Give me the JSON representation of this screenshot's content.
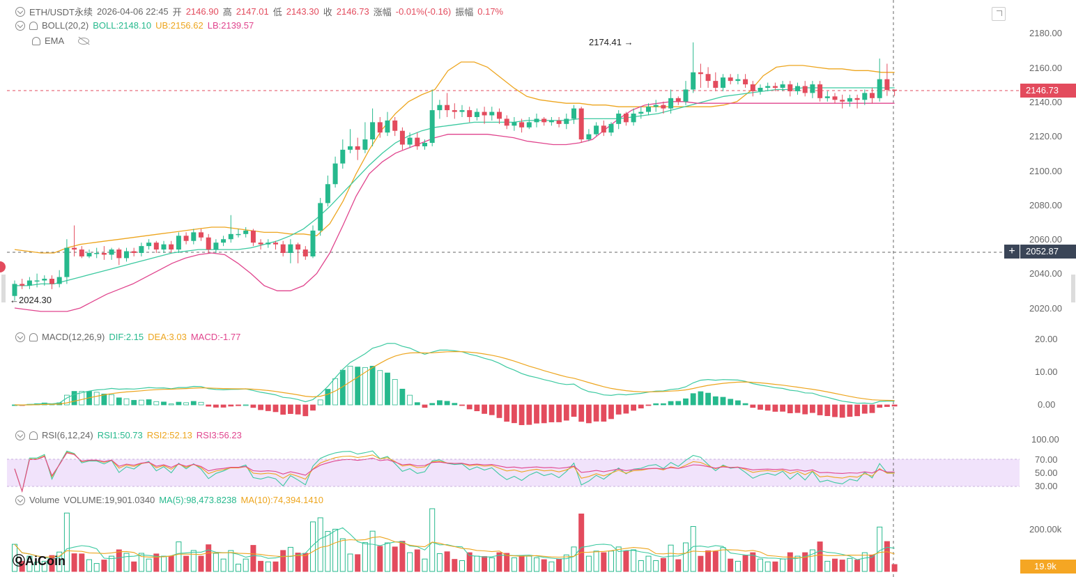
{
  "header": {
    "symbol": "ETH/USDT永续",
    "datetime": "2026-04-06 22:45",
    "open_label": "开",
    "open_value": "2146.90",
    "high_label": "高",
    "high_value": "2147.01",
    "low_label": "低",
    "low_value": "2143.30",
    "close_label": "收",
    "close_value": "2146.73",
    "change_label": "涨幅",
    "change_value": "-0.01%(-0.16)",
    "amplitude_label": "振幅",
    "amplitude_value": "0.17%"
  },
  "boll": {
    "name": "BOLL(20,2)",
    "mid": "BOLL:2148.10",
    "ub": "UB:2156.62",
    "lb": "LB:2139.57"
  },
  "ema": {
    "name": "EMA"
  },
  "macd": {
    "name": "MACD(12,26,9)",
    "dif": "DIF:2.15",
    "dea": "DEA:3.03",
    "macd": "MACD:-1.77"
  },
  "rsi": {
    "name": "RSI(6,12,24)",
    "rsi1": "RSI1:50.73",
    "rsi2": "RSI2:52.13",
    "rsi3": "RSI3:56.23"
  },
  "volume": {
    "name": "Volume",
    "vol": "VOLUME:19,901.0340",
    "ma5": "MA(5):98,473.8238",
    "ma10": "MA(10):74,394.1410"
  },
  "price_axis": [
    "2180.00",
    "2160.00",
    "2140.00",
    "2120.00",
    "2100.00",
    "2080.00",
    "2060.00",
    "2040.00",
    "2020.00"
  ],
  "macd_axis": [
    "20.00",
    "10.00",
    "0.00"
  ],
  "rsi_axis": [
    "100.00",
    "70.00",
    "50.00",
    "30.00"
  ],
  "vol_axis": [
    "200.00k"
  ],
  "current_price_tag": "2146.73",
  "crosshair_price_tag": "2052.87",
  "volume_tag": "19.9k",
  "high_marker": "2174.41",
  "low_marker": "2024.30",
  "logo_text": "AiCoin",
  "colors": {
    "up": "#26b98d",
    "down": "#e34b5d",
    "ub": "#eda51e",
    "mid": "#3bc9a0",
    "lb": "#e0448d",
    "rsi_band": "#f1e3fb"
  },
  "chart_data": {
    "type": "candlestick",
    "series_note": "",
    "price_ylim": [
      2015,
      2190
    ],
    "candles": [
      [
        2027,
        2034,
        2024.3,
        2036
      ],
      [
        2034,
        2033,
        2031,
        2037
      ],
      [
        2033,
        2036,
        2031,
        2038
      ],
      [
        2036,
        2036,
        2032,
        2040
      ],
      [
        2036,
        2037,
        2033,
        2039
      ],
      [
        2037,
        2034,
        2031,
        2039
      ],
      [
        2034,
        2038,
        2032,
        2042
      ],
      [
        2038,
        2055,
        2034,
        2060
      ],
      [
        2055,
        2054,
        2050,
        2068
      ],
      [
        2054,
        2050,
        2049,
        2056
      ],
      [
        2050,
        2052,
        2049,
        2054
      ],
      [
        2052,
        2052,
        2049,
        2055
      ],
      [
        2052,
        2051,
        2048,
        2056
      ],
      [
        2051,
        2054,
        2048,
        2055
      ],
      [
        2054,
        2049,
        2045,
        2055
      ],
      [
        2049,
        2053,
        2047,
        2055
      ],
      [
        2053,
        2052,
        2050,
        2055
      ],
      [
        2052,
        2056,
        2050,
        2058
      ],
      [
        2056,
        2058,
        2054,
        2060
      ],
      [
        2058,
        2054,
        2052,
        2059
      ],
      [
        2054,
        2057,
        2052,
        2059
      ],
      [
        2057,
        2054,
        2052,
        2059
      ],
      [
        2054,
        2062,
        2052,
        2064
      ],
      [
        2062,
        2059,
        2057,
        2064
      ],
      [
        2059,
        2064,
        2057,
        2066
      ],
      [
        2064,
        2061,
        2059,
        2066
      ],
      [
        2061,
        2054,
        2052,
        2063
      ],
      [
        2054,
        2058,
        2052,
        2060
      ],
      [
        2058,
        2060,
        2056,
        2062
      ],
      [
        2060,
        2063,
        2058,
        2074
      ],
      [
        2063,
        2063,
        2061,
        2066
      ],
      [
        2063,
        2065,
        2061,
        2067
      ],
      [
        2065,
        2058,
        2056,
        2066
      ],
      [
        2058,
        2057,
        2054,
        2060
      ],
      [
        2057,
        2058,
        2055,
        2060
      ],
      [
        2058,
        2057,
        2054,
        2059
      ],
      [
        2057,
        2052,
        2050,
        2059
      ],
      [
        2052,
        2057,
        2046,
        2060
      ],
      [
        2057,
        2054,
        2046,
        2058
      ],
      [
        2054,
        2050,
        2048,
        2056
      ],
      [
        2050,
        2065,
        2049,
        2068
      ],
      [
        2065,
        2081,
        2062,
        2084
      ],
      [
        2081,
        2092,
        2079,
        2097
      ],
      [
        2092,
        2104,
        2090,
        2108
      ],
      [
        2104,
        2112,
        2101,
        2118
      ],
      [
        2112,
        2114,
        2110,
        2124
      ],
      [
        2114,
        2112,
        2106,
        2119
      ],
      [
        2112,
        2118,
        2110,
        2128
      ],
      [
        2118,
        2128,
        2114,
        2136
      ],
      [
        2128,
        2122,
        2119,
        2131
      ],
      [
        2122,
        2129,
        2120,
        2134
      ],
      [
        2129,
        2123,
        2120,
        2131
      ],
      [
        2123,
        2115,
        2112,
        2125
      ],
      [
        2115,
        2119,
        2113,
        2122
      ],
      [
        2119,
        2114,
        2112,
        2122
      ],
      [
        2114,
        2116,
        2112,
        2118
      ],
      [
        2116,
        2135,
        2114,
        2147
      ],
      [
        2135,
        2138,
        2130,
        2141
      ],
      [
        2138,
        2135,
        2131,
        2145
      ],
      [
        2135,
        2134,
        2130,
        2139
      ],
      [
        2134,
        2135,
        2131,
        2138
      ],
      [
        2135,
        2131,
        2128,
        2137
      ],
      [
        2131,
        2134,
        2129,
        2136
      ],
      [
        2134,
        2132,
        2127,
        2137
      ],
      [
        2132,
        2134,
        2129,
        2137
      ],
      [
        2134,
        2130,
        2127,
        2136
      ],
      [
        2130,
        2126,
        2124,
        2132
      ],
      [
        2126,
        2128,
        2123,
        2131
      ],
      [
        2128,
        2125,
        2122,
        2130
      ],
      [
        2125,
        2128,
        2124,
        2131
      ],
      [
        2128,
        2130,
        2125,
        2133
      ],
      [
        2130,
        2128,
        2126,
        2131
      ],
      [
        2128,
        2129,
        2126,
        2131
      ],
      [
        2129,
        2127,
        2125,
        2131
      ],
      [
        2127,
        2130,
        2124,
        2133
      ],
      [
        2130,
        2136,
        2127,
        2138
      ],
      [
        2136,
        2118,
        2116,
        2137
      ],
      [
        2118,
        2121,
        2117,
        2124
      ],
      [
        2121,
        2126,
        2120,
        2128
      ],
      [
        2126,
        2122,
        2120,
        2129
      ],
      [
        2122,
        2127,
        2120,
        2128
      ],
      [
        2127,
        2133,
        2124,
        2135
      ],
      [
        2133,
        2128,
        2126,
        2134
      ],
      [
        2128,
        2133,
        2126,
        2136
      ],
      [
        2133,
        2134,
        2130,
        2137
      ],
      [
        2134,
        2137,
        2132,
        2139
      ],
      [
        2137,
        2138,
        2134,
        2141
      ],
      [
        2138,
        2136,
        2133,
        2140
      ],
      [
        2136,
        2142,
        2133,
        2147
      ],
      [
        2142,
        2140,
        2138,
        2143
      ],
      [
        2140,
        2147,
        2138,
        2152
      ],
      [
        2147,
        2157,
        2145,
        2174.41
      ],
      [
        2157,
        2156,
        2148,
        2162
      ],
      [
        2156,
        2152,
        2148,
        2160
      ],
      [
        2152,
        2148,
        2146,
        2157
      ],
      [
        2148,
        2154,
        2146,
        2156
      ],
      [
        2154,
        2152,
        2150,
        2156
      ],
      [
        2152,
        2153,
        2150,
        2156
      ],
      [
        2153,
        2150,
        2148,
        2156
      ],
      [
        2150,
        2146,
        2143,
        2152
      ],
      [
        2146,
        2148,
        2144,
        2150
      ],
      [
        2148,
        2149,
        2146,
        2151
      ],
      [
        2149,
        2148,
        2146,
        2151
      ],
      [
        2148,
        2150,
        2146,
        2152
      ],
      [
        2150,
        2146,
        2143,
        2152
      ],
      [
        2146,
        2149,
        2144,
        2151
      ],
      [
        2149,
        2145,
        2143,
        2152
      ],
      [
        2145,
        2150,
        2142,
        2152
      ],
      [
        2150,
        2142,
        2140,
        2152
      ],
      [
        2142,
        2143,
        2140,
        2146
      ],
      [
        2143,
        2141,
        2139,
        2145
      ],
      [
        2141,
        2140,
        2136,
        2144
      ],
      [
        2140,
        2142,
        2137,
        2144
      ],
      [
        2142,
        2141,
        2136,
        2144
      ],
      [
        2141,
        2145,
        2138,
        2147
      ],
      [
        2145,
        2142,
        2139,
        2148
      ],
      [
        2142,
        2153,
        2140,
        2165
      ],
      [
        2153,
        2146.73,
        2143.3,
        2162
      ],
      [
        2146.9,
        2146.73,
        2143.3,
        2147.01
      ]
    ],
    "boll_ub": [
      2054,
      2053,
      2052,
      2052,
      2055,
      2057,
      2058,
      2059,
      2060,
      2061,
      2062,
      2063,
      2064,
      2065,
      2066,
      2067,
      2067,
      2066,
      2065,
      2064,
      2064,
      2063,
      2063,
      2062,
      2069,
      2082,
      2098,
      2112,
      2124,
      2133,
      2140,
      2144,
      2147,
      2158,
      2163,
      2163,
      2160,
      2154,
      2148,
      2143,
      2141,
      2140,
      2139,
      2139,
      2138,
      2138,
      2137,
      2137,
      2137,
      2137,
      2137,
      2137,
      2137,
      2137,
      2138,
      2140,
      2146,
      2155,
      2160,
      2161,
      2161,
      2160,
      2159,
      2159,
      2158,
      2158,
      2157,
      2157
    ],
    "boll_mid": [
      2033,
      2033,
      2034,
      2034,
      2036,
      2038,
      2040,
      2042,
      2044,
      2046,
      2048,
      2050,
      2052,
      2053,
      2054,
      2054,
      2054,
      2054,
      2055,
      2057,
      2059,
      2062,
      2066,
      2072,
      2079,
      2087,
      2095,
      2103,
      2110,
      2116,
      2120,
      2123,
      2125,
      2126,
      2127,
      2128,
      2128,
      2128,
      2128,
      2129,
      2129,
      2129,
      2129,
      2130,
      2130,
      2130,
      2130,
      2131,
      2132,
      2133,
      2135,
      2137,
      2139,
      2141,
      2143,
      2144,
      2145,
      2146,
      2147,
      2147,
      2148,
      2148,
      2148,
      2148,
      2148,
      2148,
      2148,
      2148
    ],
    "boll_lb": [
      2020,
      2019,
      2018,
      2018,
      2018,
      2020,
      2024,
      2028,
      2031,
      2034,
      2038,
      2042,
      2046,
      2049,
      2051,
      2052,
      2051,
      2046,
      2040,
      2033,
      2030,
      2030,
      2033,
      2040,
      2052,
      2068,
      2085,
      2098,
      2105,
      2110,
      2113,
      2116,
      2119,
      2121,
      2121,
      2121,
      2121,
      2120,
      2119,
      2117,
      2116,
      2115,
      2115,
      2116,
      2118,
      2124,
      2130,
      2135,
      2138,
      2139,
      2140,
      2140,
      2139,
      2139,
      2139,
      2139,
      2139,
      2139,
      2139,
      2139,
      2139,
      2139,
      2139,
      2139,
      2139,
      2139,
      2139,
      2139
    ]
  }
}
